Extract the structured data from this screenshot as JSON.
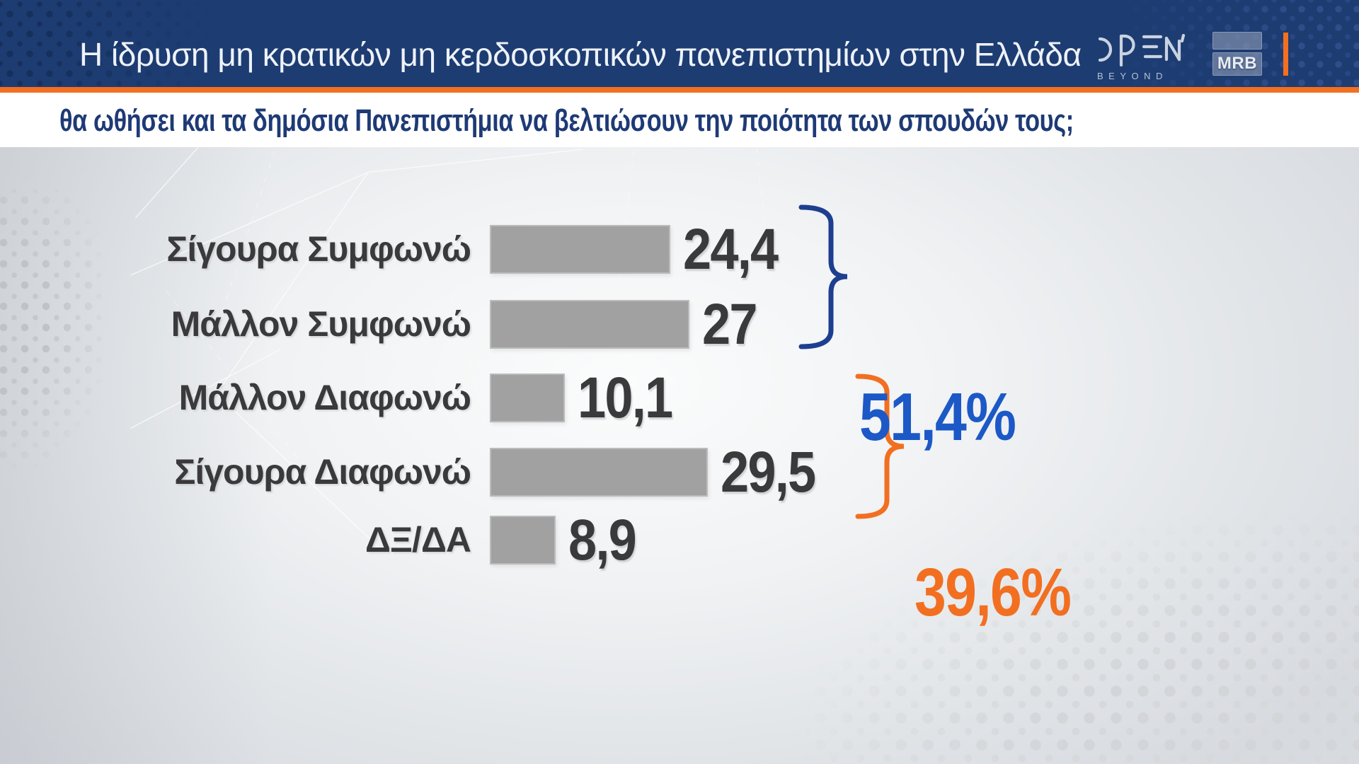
{
  "header": {
    "title": "Η ίδρυση μη κρατικών μη κερδοσκοπικών πανεπιστημίων στην Ελλάδα",
    "channel": {
      "name": "OPEN",
      "tagline": "BEYOND"
    },
    "agency": "MRB"
  },
  "question": "θα ωθήσει και τα δημόσια Πανεπιστήμια να βελτιώσουν την ποιότητα των σπουδών τους;",
  "chart_data": {
    "type": "bar",
    "orientation": "horizontal",
    "title": "Η ίδρυση μη κρατικών μη κερδοσκοπικών πανεπιστημίων στην Ελλάδα — θα ωθήσει και τα δημόσια Πανεπιστήμια να βελτιώσουν την ποιότητα των σπουδών τους;",
    "categories": [
      "Σίγουρα Συμφωνώ",
      "Μάλλον Συμφωνώ",
      "Μάλλον Διαφωνώ",
      "Σίγουρα Διαφωνώ",
      "ΔΞ/ΔΑ"
    ],
    "values": [
      24.4,
      27,
      10.1,
      29.5,
      8.9
    ],
    "value_labels": [
      "24,4",
      "27",
      "10,1",
      "29,5",
      "8,9"
    ],
    "xlim": [
      0,
      30
    ],
    "grid": false,
    "legend": false,
    "groups": [
      {
        "label": "51,4%",
        "sum_of": [
          "Σίγουρα Συμφωνώ",
          "Μάλλον Συμφωνώ"
        ],
        "value": 51.4,
        "color": "#1c59c6",
        "bracket_color": "#1e3f8f"
      },
      {
        "label": "39,6%",
        "sum_of": [
          "Μάλλον Διαφωνώ",
          "Σίγουρα Διαφωνώ"
        ],
        "value": 39.6,
        "color": "#f26f21",
        "bracket_color": "#f26f21"
      }
    ]
  },
  "colors": {
    "header_bg": "#1d3c72",
    "accent_orange": "#f36f21",
    "question_text": "#1e3a76",
    "label_text": "#3a3a3c",
    "value_text": "#3a3a3c",
    "bar_fill": "#a1a1a1"
  }
}
